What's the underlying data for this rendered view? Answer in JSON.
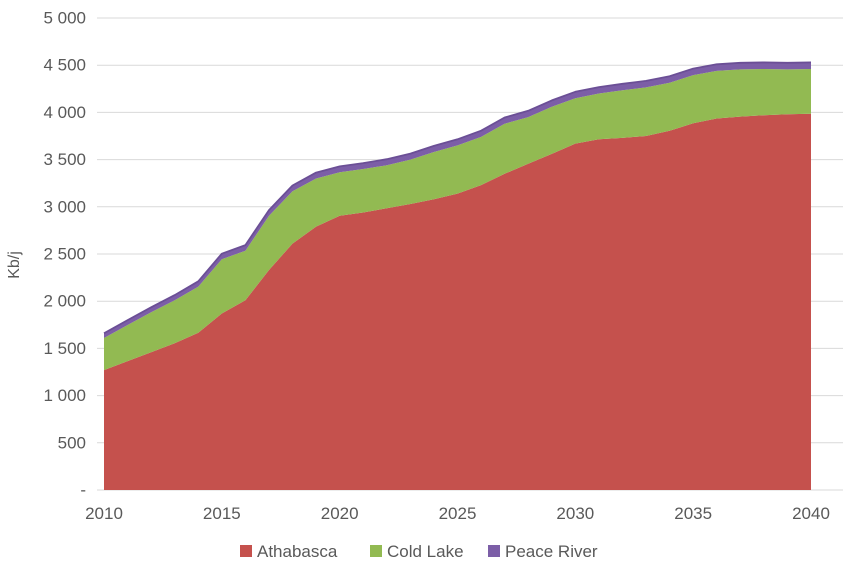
{
  "chart_data": {
    "type": "area",
    "stacked": true,
    "title": "",
    "ylabel": "Kb/j",
    "xlabel": "",
    "grid": true,
    "legend_position": "bottom",
    "ylim": [
      0,
      5000
    ],
    "x": [
      2010,
      2011,
      2012,
      2013,
      2014,
      2015,
      2016,
      2017,
      2018,
      2019,
      2020,
      2021,
      2022,
      2023,
      2024,
      2025,
      2026,
      2027,
      2028,
      2029,
      2030,
      2031,
      2032,
      2033,
      2034,
      2035,
      2036,
      2037,
      2038,
      2039,
      2040
    ],
    "x_ticks": [
      2010,
      2015,
      2020,
      2025,
      2030,
      2035,
      2040
    ],
    "y_ticks": [
      0,
      500,
      1000,
      1500,
      2000,
      2500,
      3000,
      3500,
      4000,
      4500,
      5000
    ],
    "y_tick_labels": [
      "-",
      "500",
      "1 000",
      "1 500",
      "2 000",
      "2 500",
      "3 000",
      "3 500",
      "4 000",
      "4 500",
      "5 000"
    ],
    "series": [
      {
        "name": "Athabasca",
        "color": "#C5514D",
        "values": [
          1270,
          1365,
          1460,
          1555,
          1665,
          1870,
          2010,
          2330,
          2610,
          2790,
          2905,
          2940,
          2985,
          3030,
          3080,
          3140,
          3230,
          3350,
          3455,
          3560,
          3670,
          3715,
          3730,
          3750,
          3805,
          3885,
          3935,
          3955,
          3970,
          3980,
          3985
        ]
      },
      {
        "name": "Cold Lake",
        "color": "#92BA52",
        "values": [
          340,
          383,
          422,
          455,
          490,
          575,
          525,
          575,
          555,
          510,
          460,
          460,
          455,
          470,
          500,
          510,
          510,
          530,
          495,
          500,
          480,
          485,
          505,
          515,
          510,
          510,
          505,
          500,
          490,
          475,
          475
        ]
      },
      {
        "name": "Peace River",
        "color": "#7C5EA7",
        "values": [
          50,
          52,
          53,
          55,
          56,
          58,
          59,
          60,
          61,
          62,
          63,
          63,
          64,
          64,
          65,
          65,
          66,
          66,
          67,
          67,
          68,
          68,
          68,
          69,
          69,
          69,
          70,
          70,
          70,
          70,
          70
        ]
      }
    ],
    "top_edge_color": "#6B4F96"
  },
  "colors": {
    "background": "#FFFFFF",
    "gridline": "#D9D9D9",
    "axis_text": "#595959"
  }
}
